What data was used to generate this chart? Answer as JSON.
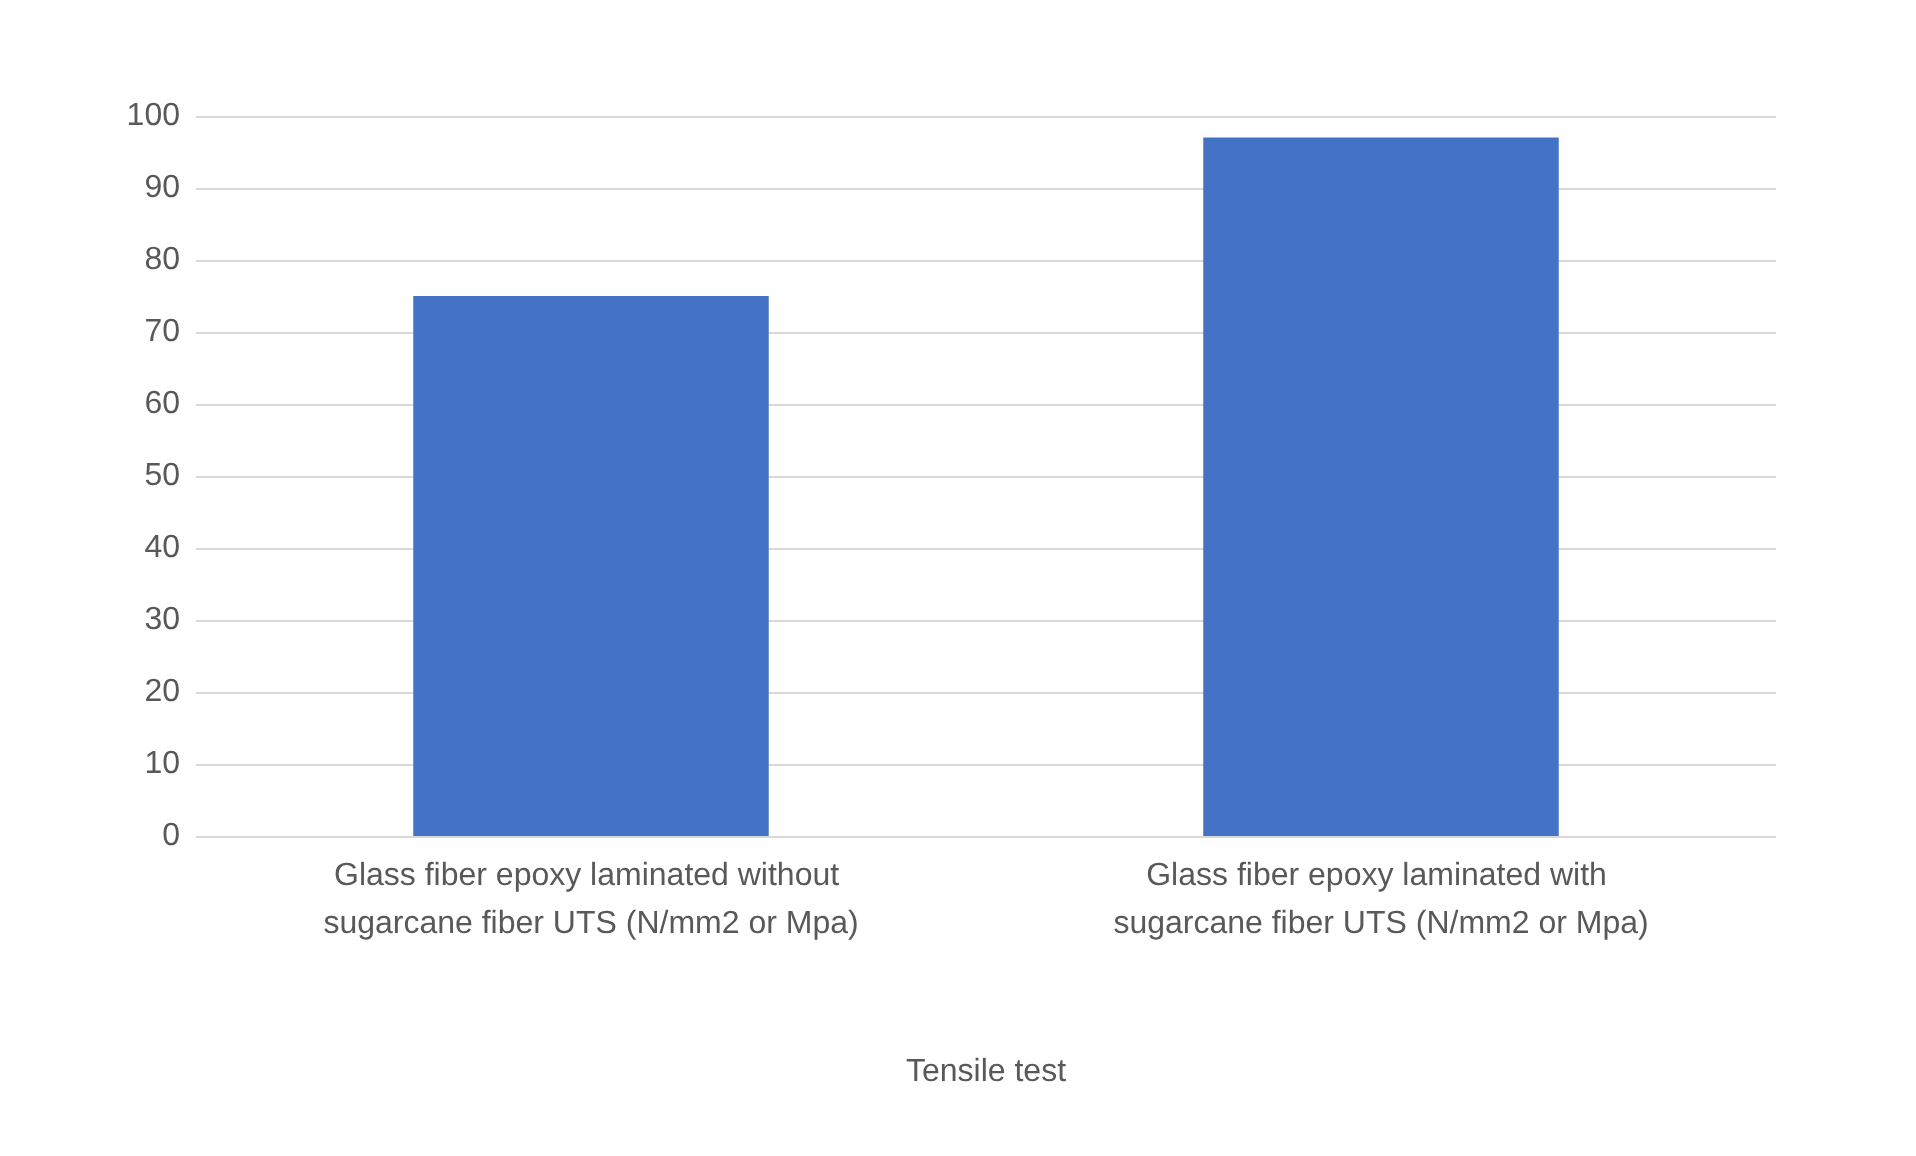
{
  "chart_data": {
    "type": "bar",
    "xlabel": "Tensile test",
    "categories": [
      "Glass fiber epoxy laminated without sugarcane fiber UTS (N/mm2 or Mpa)",
      "Glass fiber epoxy laminated with sugarcane fiber UTS (N/mm2 or Mpa)"
    ],
    "values": [
      75,
      97
    ],
    "color": "#4472c4",
    "ylim": [
      0,
      100
    ],
    "yticks": [
      0,
      10,
      20,
      30,
      40,
      50,
      60,
      70,
      80,
      90,
      100
    ],
    "grid": "y"
  }
}
